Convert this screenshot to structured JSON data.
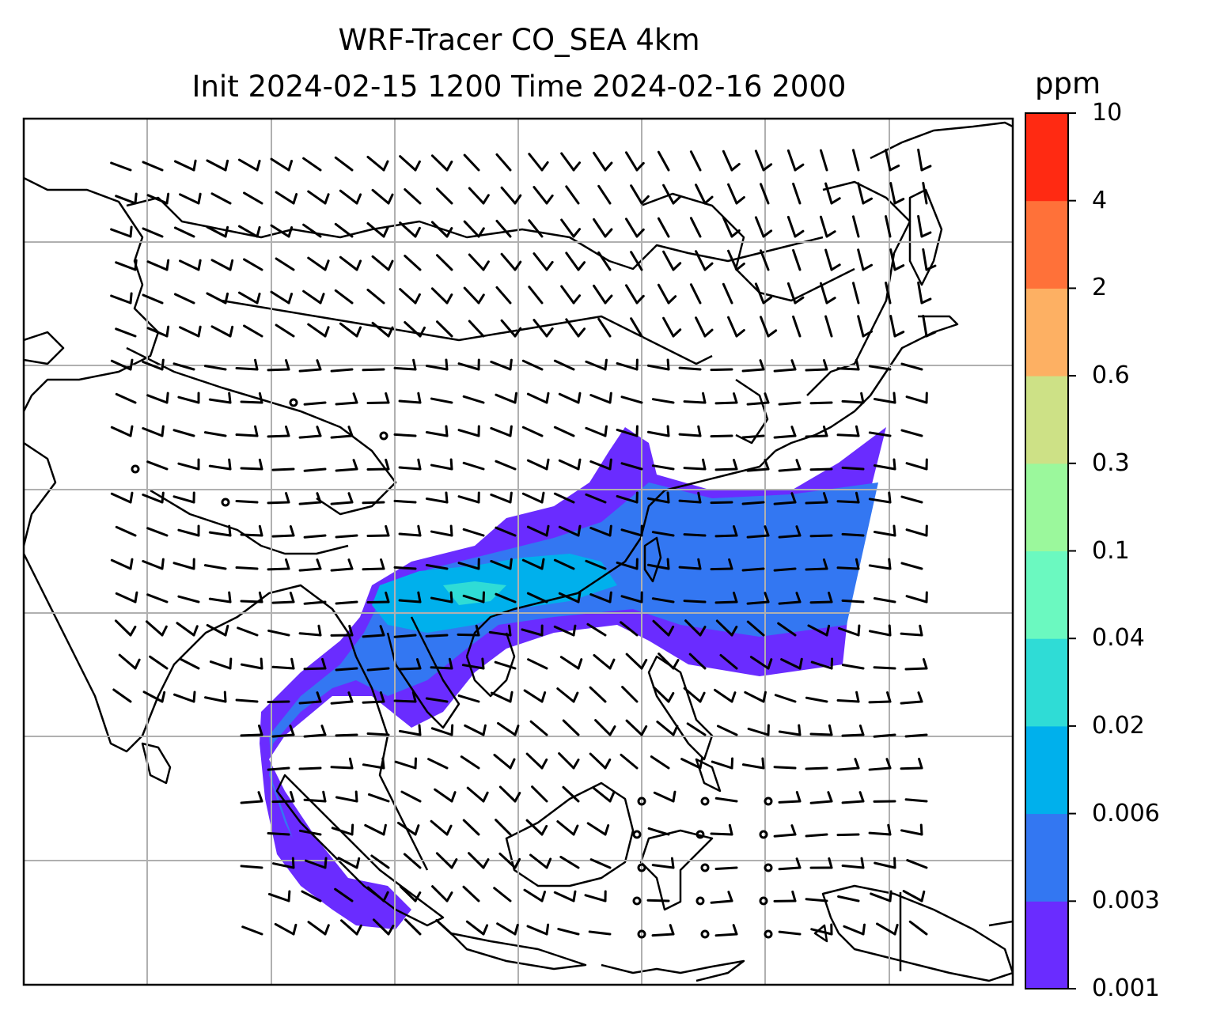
{
  "title": {
    "line1": "WRF-Tracer CO_SEA 4km",
    "line2": "Init 2024-02-15 1200 Time 2024-02-16 2000"
  },
  "colorbar": {
    "unit": "ppm",
    "levels": [
      "0.001",
      "0.003",
      "0.006",
      "0.02",
      "0.04",
      "0.1",
      "0.3",
      "0.6",
      "2",
      "4",
      "10"
    ],
    "colors": [
      "#6a2cff",
      "#3377f2",
      "#00b0ec",
      "#2fdcd6",
      "#6bf9c0",
      "#9bf89c",
      "#cde186",
      "#fdb063",
      "#ff7139",
      "#ff2a12"
    ]
  },
  "map": {
    "gridlines": true,
    "coastline_color": "#000000",
    "field": "CO tracer concentration (filled contours)",
    "overlay": "wind barbs"
  }
}
